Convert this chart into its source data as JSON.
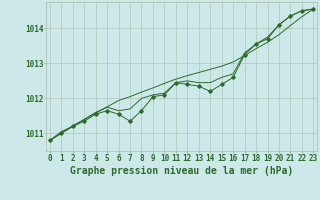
{
  "x": [
    0,
    1,
    2,
    3,
    4,
    5,
    6,
    7,
    8,
    9,
    10,
    11,
    12,
    13,
    14,
    15,
    16,
    17,
    18,
    19,
    20,
    21,
    22,
    23
  ],
  "y_main": [
    1010.8,
    1011.0,
    1011.2,
    1011.35,
    1011.55,
    1011.65,
    1011.55,
    1011.35,
    1011.65,
    1012.05,
    1012.1,
    1012.45,
    1012.4,
    1012.35,
    1012.2,
    1012.4,
    1012.6,
    1013.25,
    1013.55,
    1013.7,
    1014.1,
    1014.35,
    1014.5,
    1014.55
  ],
  "y_trend": [
    1010.8,
    1011.05,
    1011.2,
    1011.4,
    1011.6,
    1011.75,
    1011.65,
    1011.7,
    1012.0,
    1012.1,
    1012.15,
    1012.45,
    1012.5,
    1012.45,
    1012.45,
    1012.6,
    1012.7,
    1013.3,
    1013.55,
    1013.75,
    1014.1,
    1014.35,
    1014.5,
    1014.55
  ],
  "y_linear": [
    1010.8,
    1011.02,
    1011.22,
    1011.4,
    1011.58,
    1011.76,
    1011.94,
    1012.05,
    1012.18,
    1012.3,
    1012.43,
    1012.55,
    1012.65,
    1012.74,
    1012.83,
    1012.92,
    1013.04,
    1013.22,
    1013.42,
    1013.6,
    1013.82,
    1014.08,
    1014.33,
    1014.55
  ],
  "bg_color": "#cce8e8",
  "line_color": "#2d6a2d",
  "grid_color": "#aabbaa",
  "xlabel": "Graphe pression niveau de la mer (hPa)",
  "ylim": [
    1010.5,
    1014.75
  ],
  "xlim": [
    -0.3,
    23.3
  ],
  "yticks": [
    1011,
    1012,
    1013,
    1014
  ],
  "xticks": [
    0,
    1,
    2,
    3,
    4,
    5,
    6,
    7,
    8,
    9,
    10,
    11,
    12,
    13,
    14,
    15,
    16,
    17,
    18,
    19,
    20,
    21,
    22,
    23
  ],
  "tick_fontsize": 5.5,
  "xlabel_fontsize": 7
}
